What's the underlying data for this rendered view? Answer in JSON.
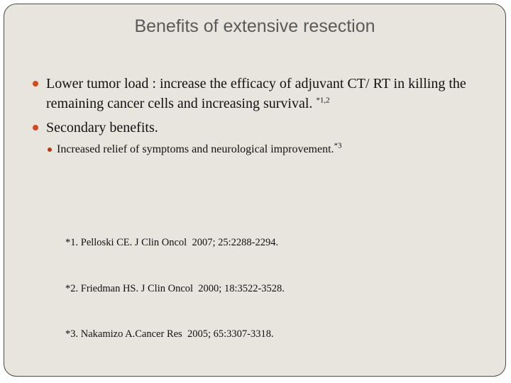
{
  "slide": {
    "title": "Benefits of extensive resection",
    "bullets": [
      {
        "text": "Lower tumor load : increase the efficacy of adjuvant CT/ RT in killing the remaining cancer cells and increasing survival. ",
        "sup": "*1,2"
      },
      {
        "text": "Secondary benefits.",
        "sup": ""
      }
    ],
    "sub_bullets": [
      {
        "text": "Increased relief of symptoms and neurological improvement.",
        "sup": "*3"
      }
    ],
    "references": [
      "*1. Pelloski CE. J Clin Oncol  2007; 25:2288-2294.",
      "*2. Friedman HS. J Clin Oncol  2000; 18:3522-3528.",
      "*3. Nakamizo A.Cancer Res  2005; 65:3307-3318."
    ],
    "colors": {
      "background": "#e8e4de",
      "border": "#4a4a4a",
      "bullet": "#d4491c",
      "title": "#5a5a5a"
    }
  }
}
